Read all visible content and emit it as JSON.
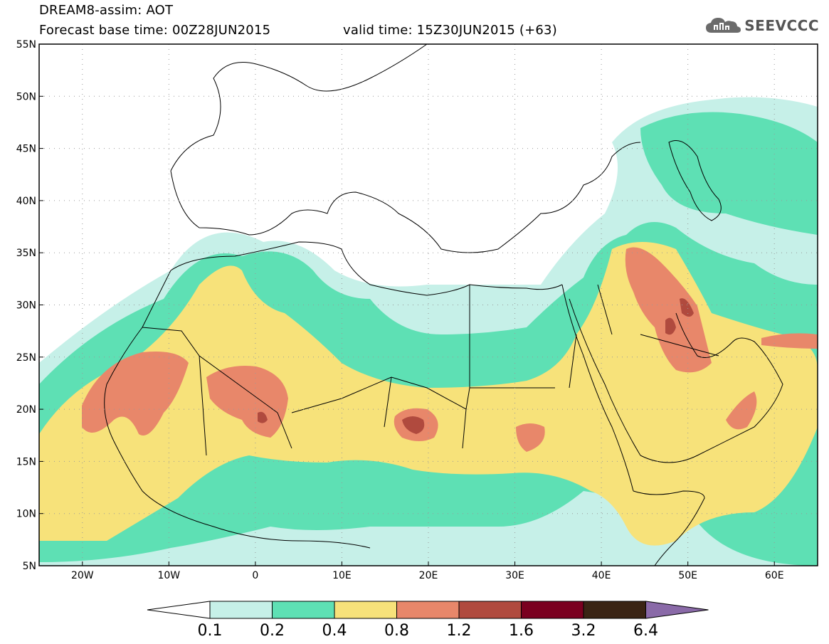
{
  "header": {
    "title": "DREAM8-assim: AOT",
    "base_time": "Forecast base time: 00Z28JUN2015",
    "valid_time": "valid time: 15Z30JUN2015 (+63)"
  },
  "logo": {
    "text": "SEEVCCC",
    "icon": "cloud-icon"
  },
  "map": {
    "lon_labels": [
      "20W",
      "10W",
      "0",
      "10E",
      "20E",
      "30E",
      "40E",
      "50E",
      "60E"
    ],
    "lat_labels": [
      "55N",
      "50N",
      "45N",
      "40N",
      "35N",
      "30N",
      "25N",
      "20N",
      "15N",
      "10N",
      "5N"
    ],
    "lon_range": [
      -25,
      65
    ],
    "lat_range": [
      5,
      55
    ]
  },
  "colorbar": {
    "levels": [
      "0.1",
      "0.2",
      "0.4",
      "0.8",
      "1.2",
      "1.6",
      "3.2",
      "6.4"
    ],
    "colors": [
      "#ffffff",
      "#c6f0e8",
      "#5ee0b4",
      "#f7e27a",
      "#e8876a",
      "#b04a3e",
      "#7a0020",
      "#3a2414",
      "#8a6aa8"
    ]
  }
}
